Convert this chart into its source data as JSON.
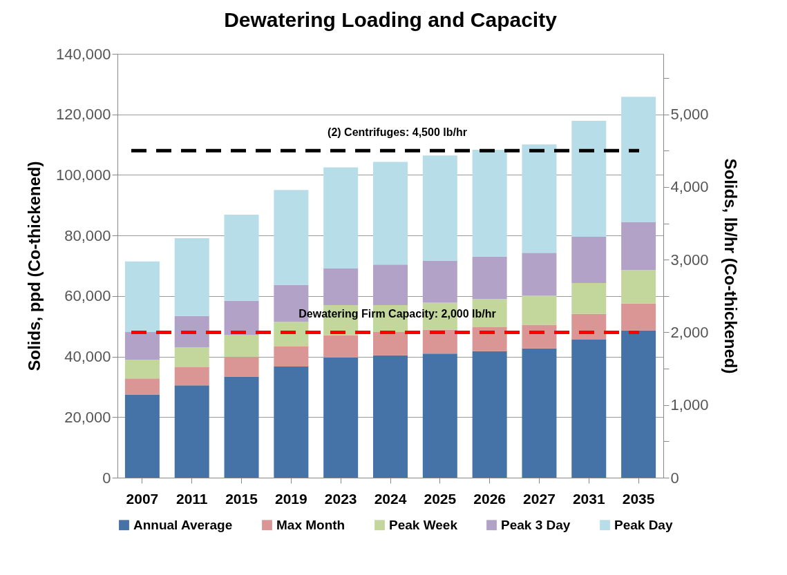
{
  "chart_data": {
    "type": "bar",
    "title": "Dewatering Loading and Capacity",
    "ylabel": "Solids, ppd (Co-thickened)",
    "y2label": "Solids, lb/hr (Co-thickened)",
    "categories": [
      "2007",
      "2011",
      "2015",
      "2019",
      "2023",
      "2024",
      "2025",
      "2026",
      "2027",
      "2031",
      "2035"
    ],
    "stacked": true,
    "series": [
      {
        "name": "Annual Average",
        "color": "#4572a7",
        "values": [
          27500,
          30500,
          33400,
          36700,
          39700,
          40400,
          41000,
          41800,
          42700,
          45600,
          48600
        ]
      },
      {
        "name": "Max Month",
        "color": "#d99694",
        "values": [
          5300,
          6000,
          6500,
          6600,
          7300,
          7700,
          7900,
          7900,
          7800,
          8500,
          8900
        ]
      },
      {
        "name": "Peak Week",
        "color": "#c3d69b",
        "values": [
          6200,
          6600,
          7300,
          8200,
          10000,
          8900,
          8900,
          9300,
          9600,
          10200,
          11100
        ]
      },
      {
        "name": "Peak 3 Day",
        "color": "#b3a2c7",
        "values": [
          9100,
          10300,
          11200,
          12200,
          12100,
          13400,
          13800,
          14000,
          14200,
          15300,
          15900
        ]
      },
      {
        "name": "Peak Day",
        "color": "#b7dde8",
        "values": [
          23300,
          25700,
          28500,
          31300,
          33400,
          33900,
          34800,
          35300,
          35800,
          38300,
          41300
        ]
      }
    ],
    "ylim": [
      0,
      140000
    ],
    "yticks": [
      0,
      {
        "value": 20000,
        "label": "20,000"
      },
      {
        "value": 40000,
        "label": "40,000"
      },
      {
        "value": 60000,
        "label": "60,000"
      },
      {
        "value": 80000,
        "label": "80,000"
      },
      {
        "value": 100000,
        "label": "100,000"
      },
      {
        "value": 120000,
        "label": "120,000"
      },
      {
        "value": 140000,
        "label": "140,000"
      }
    ],
    "y2lim": [
      0,
      5833
    ],
    "y2ticks": [
      0,
      {
        "value": 500,
        "label": null
      },
      {
        "value": 1000,
        "label": "1,000"
      },
      {
        "value": 1500,
        "label": null
      },
      {
        "value": 2000,
        "label": "2,000"
      },
      {
        "value": 2500,
        "label": null
      },
      {
        "value": 3000,
        "label": "3,000"
      },
      {
        "value": 3500,
        "label": null
      },
      {
        "value": 4000,
        "label": "4,000"
      },
      {
        "value": 4500,
        "label": null
      },
      {
        "value": 5000,
        "label": "5,000"
      },
      {
        "value": 5500,
        "label": null
      }
    ],
    "ref_lines": [
      {
        "axis": "y2",
        "value": 4500,
        "label": "(2) Centrifuges: 4,500 lb/hr",
        "color": "#000000",
        "line_style": "dashed"
      },
      {
        "axis": "y2",
        "value": 2000,
        "label": "Dewatering Firm Capacity: 2,000 lb/hr",
        "color": "#ff0000",
        "line_style": "dashed"
      }
    ],
    "grid": "y",
    "legend": "bottom"
  }
}
